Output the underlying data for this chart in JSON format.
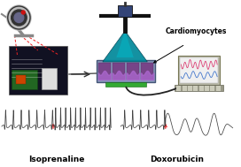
{
  "bg_color": "#ffffff",
  "cardiomyocytes_label": "Cardiomyocytes",
  "isoprenaline_label": "Isoprenaline",
  "doxorubicin_label": "Doxorubicin",
  "signal_color_dark": "#444444",
  "signal_color_light": "#999999",
  "arrow_red": "#ee2222",
  "cone_color": "#009aaa",
  "well_plate_frame": "#6699cc",
  "well_purple": "#884488",
  "well_purple_dark": "#662266",
  "laptop_screen_bg": "#ccddcc",
  "laptop_body": "#aaaaaa",
  "laptop_signal1": "#dd4477",
  "laptop_signal2": "#4477cc",
  "green_base": "#33aa33",
  "cam_body": "#aaaaaa",
  "cam_dark": "#222222",
  "scope_bar": "#111111",
  "scope_box": "#334477",
  "chip_bg": "#111122",
  "chip_board": "#226622",
  "chip_white": "#cccccc"
}
